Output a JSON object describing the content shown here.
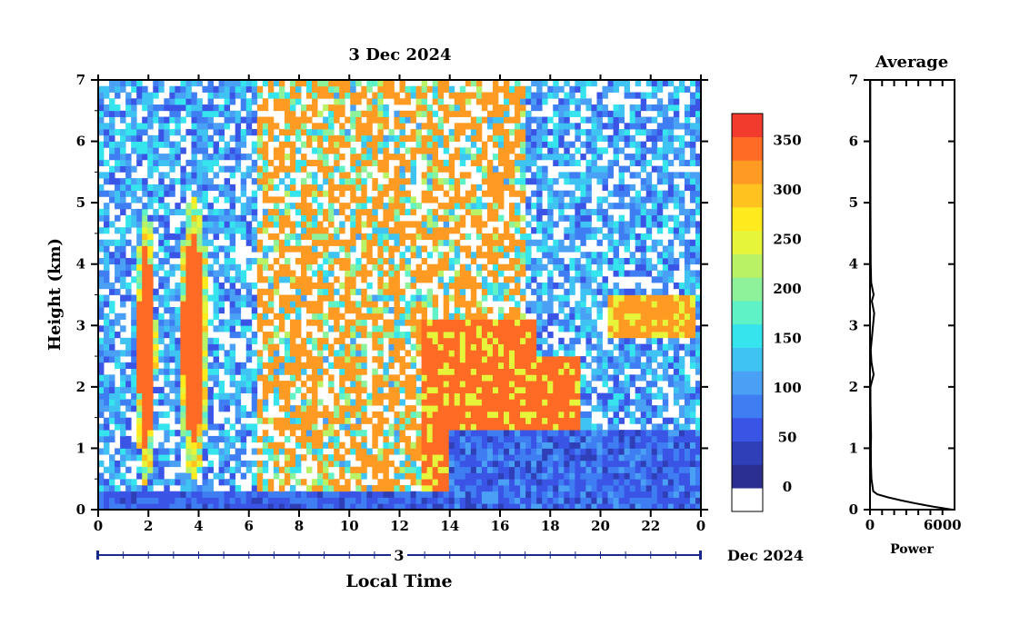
{
  "chart_data": [
    {
      "type": "heatmap",
      "title": "3 Dec 2024",
      "xlabel": "Local Time",
      "ylabel": "Height (km)",
      "xlim": [
        0,
        24
      ],
      "ylim": [
        0,
        7
      ],
      "x_ticks": [
        "0",
        "2",
        "4",
        "6",
        "8",
        "10",
        "12",
        "14",
        "16",
        "18",
        "20",
        "22",
        "0"
      ],
      "y_ticks": [
        "0",
        "1",
        "2",
        "3",
        "4",
        "5",
        "6",
        "7"
      ],
      "date_axis": {
        "day_label": "3",
        "month_year_label": "Dec 2024"
      },
      "colorbar": {
        "ticks": [
          "0",
          "50",
          "100",
          "150",
          "200",
          "250",
          "300",
          "350"
        ],
        "colors": [
          "#ffffff",
          "#2b2f8f",
          "#2e3fb8",
          "#3a55e6",
          "#3f7ef2",
          "#4aa0f5",
          "#3fc3f2",
          "#36e4ee",
          "#5ef2c6",
          "#8df29a",
          "#b9f265",
          "#e6f53a",
          "#ffea1e",
          "#ffc21e",
          "#ff9a22",
          "#ff6a25",
          "#f23b2d"
        ]
      },
      "features": [
        {
          "name": "convective-column",
          "x": [
            1.5,
            2.3
          ],
          "y": [
            0.4,
            4.9
          ],
          "value": 370
        },
        {
          "name": "convective-column",
          "x": [
            3.2,
            4.4
          ],
          "y": [
            0.5,
            5.1
          ],
          "value": 370
        },
        {
          "name": "precipitation-band",
          "x": [
            6.4,
            17.0
          ],
          "y": [
            0.3,
            7.0
          ],
          "value": 330
        },
        {
          "name": "rising-layer",
          "x": [
            12.8,
            17.5
          ],
          "y": [
            0.3,
            3.1
          ],
          "value": 370
        },
        {
          "name": "cloud-layer",
          "x": [
            17.5,
            19.3
          ],
          "y": [
            1.0,
            2.5
          ],
          "value": 370
        },
        {
          "name": "cloud-layer",
          "x": [
            20.2,
            23.7
          ],
          "y": [
            2.8,
            3.5
          ],
          "value": 340
        },
        {
          "name": "boundary-layer",
          "x": [
            14.0,
            24.0
          ],
          "y": [
            0.0,
            1.3
          ],
          "value": 60
        }
      ]
    },
    {
      "type": "line",
      "title": "Average",
      "xlabel": "Power",
      "ylabel": "",
      "xlim": [
        0,
        7000
      ],
      "ylim": [
        0,
        7
      ],
      "x_ticks": [
        "0",
        "6000"
      ],
      "y_ticks": [
        "0",
        "1",
        "2",
        "3",
        "4",
        "5",
        "6",
        "7"
      ],
      "series": [
        {
          "x": [
            6800,
            5200,
            3800,
            2600,
            1500,
            600,
            260,
            120,
            80,
            70,
            90,
            60,
            40,
            40,
            300,
            120,
            60,
            200,
            350,
            150,
            300,
            100,
            60,
            40,
            30,
            25
          ],
          "y": [
            0.0,
            0.05,
            0.1,
            0.15,
            0.2,
            0.25,
            0.3,
            0.5,
            0.7,
            1.0,
            1.2,
            1.5,
            1.8,
            2.0,
            2.2,
            2.4,
            2.6,
            2.9,
            3.2,
            3.4,
            3.5,
            3.7,
            4.0,
            5.0,
            6.0,
            7.0
          ]
        }
      ]
    }
  ]
}
